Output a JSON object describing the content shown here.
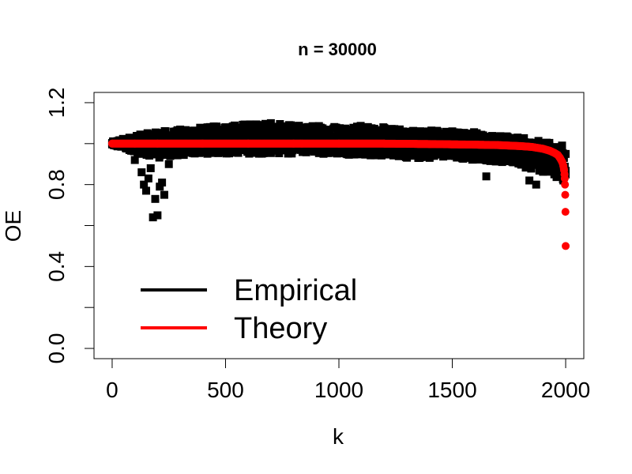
{
  "chart_data": {
    "type": "scatter",
    "title": "n =  30000",
    "xlabel": "k",
    "ylabel": "OE",
    "xlim": [
      -80,
      2080
    ],
    "ylim": [
      -0.05,
      1.25
    ],
    "xticks": [
      "0",
      "500",
      "1000",
      "1500",
      "2000"
    ],
    "yticks": [
      "0.0",
      "0.4",
      "0.8",
      "1.2"
    ],
    "legend": {
      "position": "bottom-left",
      "entries": [
        "Empirical",
        "Theory"
      ]
    },
    "series": [
      {
        "name": "Empirical",
        "color": "#000000",
        "marker": "square",
        "description_points": [
          [
            0,
            1.0
          ],
          [
            20,
            0.99
          ],
          [
            50,
            1.01
          ],
          [
            90,
            0.98
          ],
          [
            100,
            0.92
          ],
          [
            120,
            0.95
          ],
          [
            130,
            0.86
          ],
          [
            140,
            0.8
          ],
          [
            150,
            0.77
          ],
          [
            160,
            0.83
          ],
          [
            170,
            0.88
          ],
          [
            180,
            0.64
          ],
          [
            190,
            0.73
          ],
          [
            200,
            0.65
          ],
          [
            210,
            0.79
          ],
          [
            220,
            0.81
          ],
          [
            230,
            0.75
          ],
          [
            250,
            0.9
          ],
          [
            300,
            0.97
          ],
          [
            400,
            1.05
          ],
          [
            500,
            1.08
          ],
          [
            600,
            1.09
          ],
          [
            700,
            1.1
          ],
          [
            800,
            1.08
          ],
          [
            900,
            1.07
          ],
          [
            1000,
            1.06
          ],
          [
            1100,
            1.08
          ],
          [
            1200,
            1.05
          ],
          [
            1300,
            1.04
          ],
          [
            1350,
            0.93
          ],
          [
            1400,
            1.05
          ],
          [
            1500,
            1.06
          ],
          [
            1600,
            1.05
          ],
          [
            1650,
            0.84
          ],
          [
            1700,
            1.03
          ],
          [
            1800,
            1.02
          ],
          [
            1840,
            0.82
          ],
          [
            1870,
            0.8
          ],
          [
            1900,
            0.88
          ],
          [
            1950,
            0.85
          ],
          [
            1990,
            0.82
          ]
        ],
        "upper_envelope": [
          [
            0,
            1.01
          ],
          [
            100,
            1.04
          ],
          [
            200,
            1.06
          ],
          [
            300,
            1.07
          ],
          [
            400,
            1.08
          ],
          [
            500,
            1.09
          ],
          [
            600,
            1.1
          ],
          [
            700,
            1.1
          ],
          [
            800,
            1.09
          ],
          [
            900,
            1.09
          ],
          [
            1000,
            1.09
          ],
          [
            1100,
            1.09
          ],
          [
            1200,
            1.08
          ],
          [
            1300,
            1.07
          ],
          [
            1400,
            1.07
          ],
          [
            1500,
            1.06
          ],
          [
            1600,
            1.06
          ],
          [
            1700,
            1.04
          ],
          [
            1800,
            1.03
          ],
          [
            1900,
            1.01
          ],
          [
            2000,
            0.99
          ]
        ],
        "lower_envelope": [
          [
            0,
            0.99
          ],
          [
            100,
            0.96
          ],
          [
            200,
            0.93
          ],
          [
            300,
            0.94
          ],
          [
            400,
            0.95
          ],
          [
            500,
            0.95
          ],
          [
            600,
            0.95
          ],
          [
            700,
            0.95
          ],
          [
            800,
            0.95
          ],
          [
            900,
            0.95
          ],
          [
            1000,
            0.95
          ],
          [
            1100,
            0.94
          ],
          [
            1200,
            0.94
          ],
          [
            1300,
            0.93
          ],
          [
            1400,
            0.93
          ],
          [
            1500,
            0.93
          ],
          [
            1600,
            0.92
          ],
          [
            1700,
            0.91
          ],
          [
            1800,
            0.89
          ],
          [
            1900,
            0.86
          ],
          [
            2000,
            0.82
          ]
        ]
      },
      {
        "name": "Theory",
        "color": "#ff0000",
        "marker": "circle",
        "points": [
          [
            0,
            1.0
          ],
          [
            100,
            1.0
          ],
          [
            200,
            1.0
          ],
          [
            400,
            1.0
          ],
          [
            600,
            1.0
          ],
          [
            800,
            1.0
          ],
          [
            1000,
            1.0
          ],
          [
            1200,
            1.0
          ],
          [
            1400,
            0.998
          ],
          [
            1600,
            0.995
          ],
          [
            1700,
            0.993
          ],
          [
            1800,
            0.988
          ],
          [
            1850,
            0.984
          ],
          [
            1900,
            0.975
          ],
          [
            1930,
            0.965
          ],
          [
            1950,
            0.955
          ],
          [
            1965,
            0.945
          ],
          [
            1975,
            0.93
          ],
          [
            1985,
            0.91
          ],
          [
            1990,
            0.89
          ],
          [
            1993,
            0.87
          ],
          [
            1995,
            0.85
          ],
          [
            1996,
            0.83
          ],
          [
            1997,
            0.8
          ],
          [
            1998,
            0.75
          ],
          [
            1999,
            0.667
          ],
          [
            2000,
            0.5
          ]
        ]
      }
    ]
  }
}
